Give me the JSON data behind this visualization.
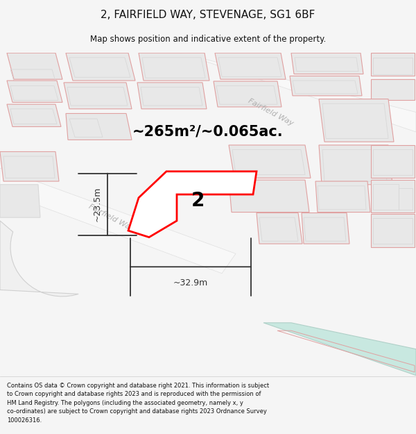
{
  "title": "2, FAIRFIELD WAY, STEVENAGE, SG1 6BF",
  "subtitle": "Map shows position and indicative extent of the property.",
  "area_text": "~265m²/~0.065ac.",
  "width_label": "~32.9m",
  "height_label": "~23.5m",
  "property_label": "2",
  "footer_text": "Contains OS data © Crown copyright and database right 2021. This information is subject to Crown copyright and database rights 2023 and is reproduced with the permission of HM Land Registry. The polygons (including the associated geometry, namely x, y co-ordinates) are subject to Crown copyright and database rights 2023 Ordnance Survey 100026316.",
  "bg_color": "#f5f5f5",
  "map_bg": "#ffffff",
  "property_color": "#ff0000",
  "dim_color": "#333333",
  "building_fill": "#e8e8e8",
  "building_edge": "#e0a0a0",
  "building_inner_edge": "#d8d8d8",
  "road_label_color": "#b0b0b0",
  "road_label_1": "Fairfield Way",
  "road_label_2": "Fairfield Way",
  "water_fill": "#c8e8e0",
  "water_edge": "#b0d0c8"
}
